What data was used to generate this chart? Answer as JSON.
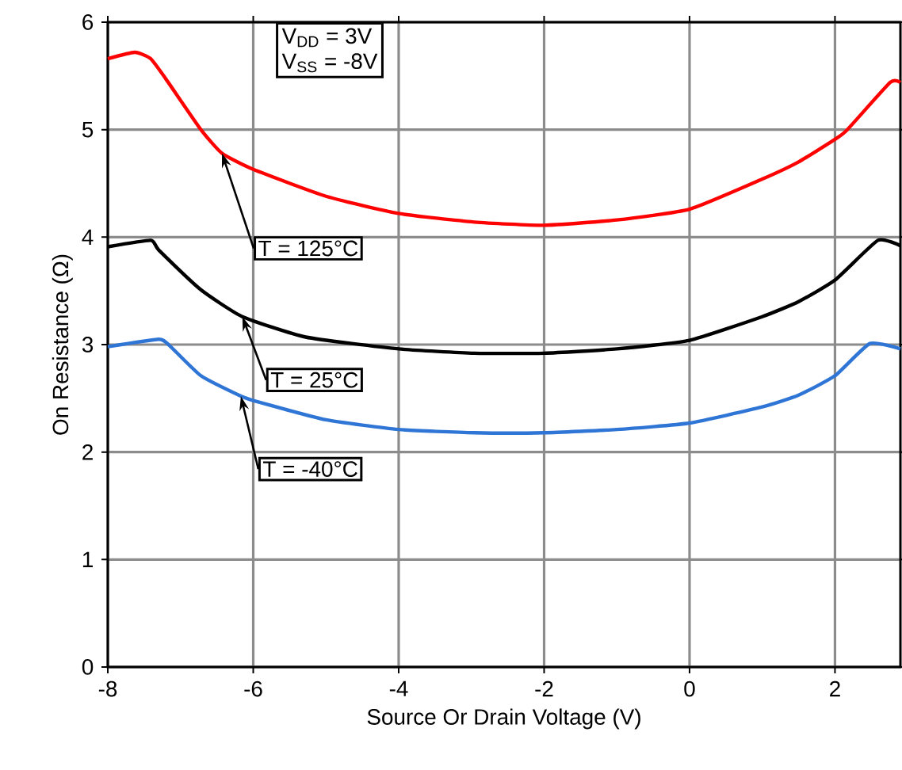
{
  "chart_data": {
    "type": "line",
    "xlabel": "Source Or Drain Voltage (V)",
    "ylabel": "On Resistance (Ω)",
    "xlim": [
      -8,
      2.9
    ],
    "ylim": [
      0,
      6
    ],
    "xticks": [
      -8,
      -6,
      -4,
      -2,
      0,
      2
    ],
    "yticks": [
      0,
      1,
      2,
      3,
      4,
      5,
      6
    ],
    "grid": true,
    "line_style": "solid",
    "marker": "none",
    "series": [
      {
        "color": "#ff0000",
        "x": [
          -8,
          -7.63,
          -7.41,
          -7.2,
          -6.72,
          -6.43,
          -6,
          -5,
          -4,
          -2.96,
          -2,
          -1,
          0,
          1,
          1.5,
          2,
          2.17,
          2.76,
          2.9
        ],
        "values": [
          5.66,
          5.72,
          5.66,
          5.47,
          5.0,
          4.78,
          4.63,
          4.38,
          4.22,
          4.14,
          4.11,
          4.16,
          4.26,
          4.54,
          4.7,
          4.91,
          5.0,
          5.44,
          5.44
        ]
      },
      {
        "color": "#000000",
        "x": [
          -8,
          -7.41,
          -7.3,
          -6.72,
          -6.15,
          -5.28,
          -4,
          -2.96,
          -2,
          -1,
          0,
          1,
          1.5,
          2,
          2.59,
          2.9
        ],
        "values": [
          3.91,
          3.97,
          3.88,
          3.51,
          3.26,
          3.07,
          2.96,
          2.92,
          2.92,
          2.96,
          3.04,
          3.26,
          3.4,
          3.6,
          3.97,
          3.92
        ]
      },
      {
        "color": "#2e75d6",
        "x": [
          -8,
          -7.3,
          -7.15,
          -6.72,
          -6.17,
          -6,
          -5,
          -4,
          -2.96,
          -2,
          -1,
          0,
          1,
          1.5,
          2,
          2.48,
          2.9
        ],
        "values": [
          2.98,
          3.05,
          2.99,
          2.71,
          2.52,
          2.48,
          2.3,
          2.21,
          2.18,
          2.18,
          2.21,
          2.27,
          2.42,
          2.53,
          2.71,
          3.01,
          2.96
        ]
      }
    ],
    "annotations": [
      {
        "text": "T = 125°C",
        "x": -6.43,
        "y": 4.78
      },
      {
        "text": "T = 25°C",
        "x": -6.15,
        "y": 3.26
      },
      {
        "text": "T = -40°C",
        "x": -6.17,
        "y": 2.52
      },
      "V$_{DD}$ = 3V",
      "V$_{SS}$ = -8V"
    ]
  }
}
